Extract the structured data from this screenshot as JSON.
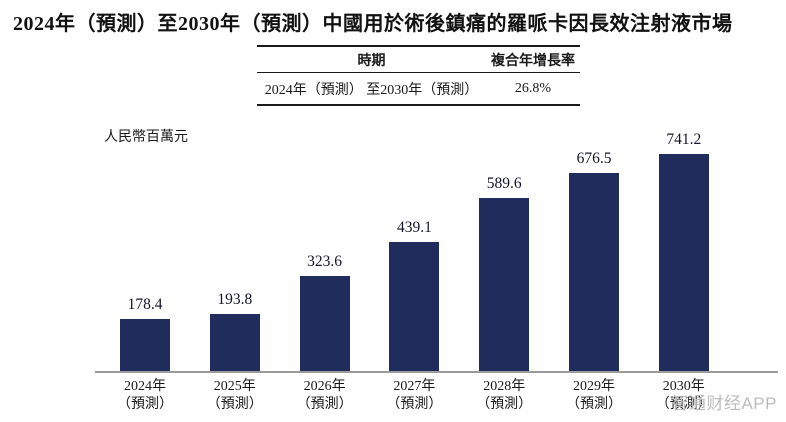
{
  "title": "2024年（預測）至2030年（預測）中國用於術後鎮痛的羅哌卡因長效注射液市場",
  "cagr_table": {
    "headers": [
      "時期",
      "複合年增長率"
    ],
    "rows": [
      [
        "2024年（預測） 至2030年（預測）",
        "26.8%"
      ]
    ]
  },
  "chart_data": {
    "type": "bar",
    "title": "2024年（預測）至2030年（預測）中國用於術後鎮痛的羅哌卡因長效注射液市場",
    "unit_label": "人民幣百萬元",
    "ylabel": "人民幣百萬元",
    "categories": [
      "2024年",
      "2025年",
      "2026年",
      "2027年",
      "2028年",
      "2029年",
      "2030年"
    ],
    "category_note": "（預測）",
    "values": [
      178.4,
      193.8,
      323.6,
      439.1,
      589.6,
      676.5,
      741.2
    ],
    "cagr": "26.8%",
    "ylim": [
      0,
      780
    ],
    "grid": false,
    "legend": "none"
  },
  "watermark": "智通财经APP",
  "colors": {
    "bar": "#202C5C",
    "axis": "#9B9B9B",
    "text": "#1A1A1A",
    "watermark": "#BCBCBC"
  }
}
